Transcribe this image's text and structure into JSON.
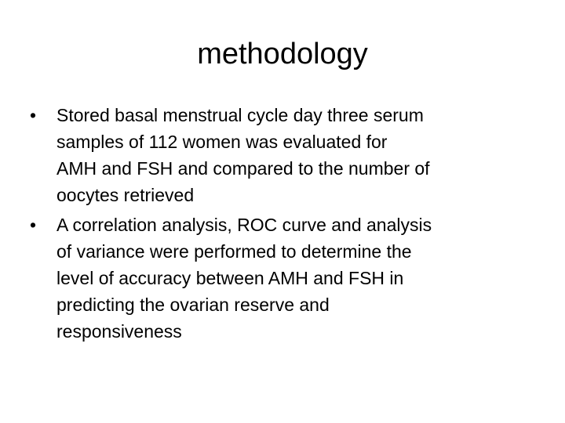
{
  "slide": {
    "title": "methodology",
    "bullets": [
      [
        "Stored basal menstrual cycle day three serum",
        "samples of 112 women was evaluated for",
        "AMH and FSH and compared to the number of",
        "oocytes retrieved"
      ],
      [
        "A correlation analysis, ROC curve and analysis",
        "of variance were performed to determine the",
        "level of accuracy between AMH and FSH in",
        "predicting the ovarian reserve and",
        "responsiveness"
      ]
    ]
  }
}
